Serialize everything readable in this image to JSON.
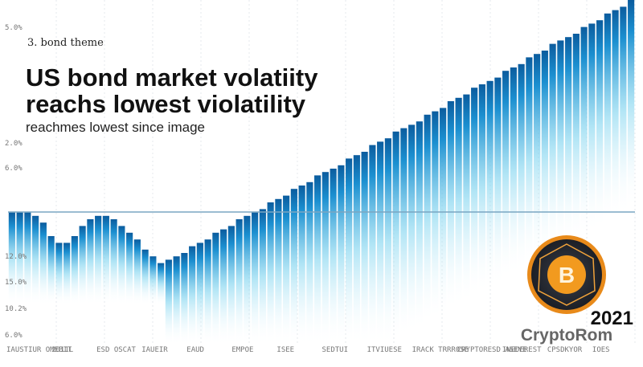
{
  "header": {
    "kicker": "3. bond theme",
    "title_lines": [
      "US bond market volatiity",
      "reachs lowest violatility"
    ],
    "subtitle": "reachmes lowest since image"
  },
  "top_label": "5.0%",
  "axis_labels": [
    "2.0%",
    "6.0%",
    "12.0%",
    "15.0%",
    "10.2%",
    "6.0%"
  ],
  "x_labels": [
    "IAUSTIUR OMEBIT",
    "2011L",
    "ESD OSCAT",
    "IAUEIR",
    "EAUD",
    "EMPOE",
    "ISEE",
    "SEDTUI",
    "ITVIUESE",
    "IRACK TRRROSE",
    "CRYPTORESD ASEYE",
    "INEDEREST",
    "CPSDKYOR",
    "IOES"
  ],
  "badge": {
    "symbol": "B",
    "year": "2021",
    "brand": "CryptoRom"
  },
  "bars": [
    37,
    37,
    37,
    36,
    34,
    30,
    28,
    28,
    30,
    33,
    35,
    36,
    36,
    35,
    33,
    31,
    29,
    26,
    24,
    22,
    23,
    24,
    25,
    27,
    28,
    29,
    31,
    32,
    33,
    35,
    36,
    37,
    38,
    40,
    41,
    42,
    44,
    45,
    46,
    48,
    49,
    50,
    51,
    53,
    54,
    55,
    57,
    58,
    59,
    61,
    62,
    63,
    64,
    66,
    67,
    68,
    70,
    71,
    72,
    74,
    75,
    76,
    77,
    79,
    80,
    81,
    83,
    84,
    85,
    87,
    88,
    89,
    90,
    92,
    93,
    94,
    96,
    97,
    98,
    100
  ]
}
